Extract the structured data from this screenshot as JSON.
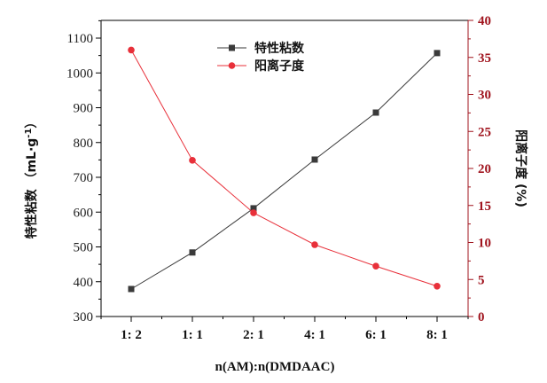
{
  "chart_data": {
    "type": "line",
    "title": "",
    "xlabel": "n(AM):n(DMDAAC)",
    "ylabel": "特性粘数 （mL·g⁻¹）",
    "y2label": "阳离子度 (%)",
    "categories": [
      "1:  2",
      "1:  1",
      "2:  1",
      "4:  1",
      "6:  1",
      "8:  1"
    ],
    "ylim": [
      300,
      1150
    ],
    "y2lim": [
      0,
      40
    ],
    "yticks": [
      300,
      400,
      500,
      600,
      700,
      800,
      900,
      1000,
      1100
    ],
    "y2ticks": [
      0,
      5,
      10,
      15,
      20,
      25,
      30,
      35,
      40
    ],
    "grid": false,
    "legend_position": "upper center",
    "series": [
      {
        "name": "特性粘数",
        "axis": "left",
        "color": "#3a3a3a",
        "marker": "square",
        "values": [
          379,
          484,
          611,
          751,
          886,
          1057
        ]
      },
      {
        "name": "阳离子度",
        "axis": "right",
        "color": "#e8303a",
        "marker": "circle",
        "values": [
          36.0,
          21.1,
          14.0,
          9.7,
          6.8,
          4.1
        ]
      }
    ]
  },
  "labels": {
    "xlabel": "n(AM):n(DMDAAC)",
    "ylabel_main": "特性粘数",
    "ylabel_unit": "（mL·g",
    "ylabel_sup": "-1",
    "ylabel_close": "）",
    "y2label": "阳离子度 (%)",
    "legend_1": "特性粘数",
    "legend_2": "阳离子度"
  },
  "colors": {
    "left_series": "#3a3a3a",
    "right_series": "#e8303a",
    "right_axis": "#a0141e"
  }
}
